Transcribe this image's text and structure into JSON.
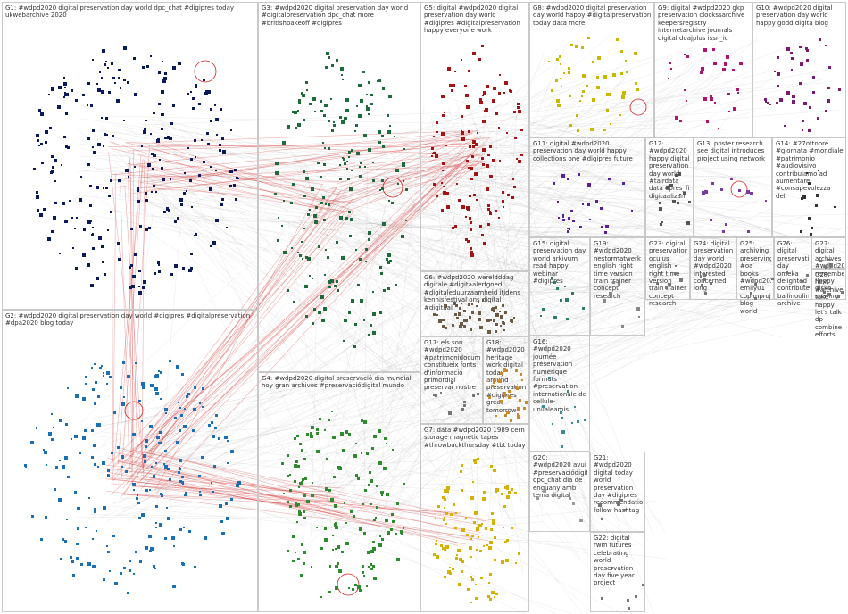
{
  "groups": [
    {
      "id": "G1",
      "label": "G1: #wdpd2020 digital preservation day world dpc_chat #digipres today ukwebarchive 2020",
      "color": "#0b1a5a",
      "count": 260
    },
    {
      "id": "G2",
      "label": "G2: #wdpd2020 digital preservation day world #digipres #digitalpreservation #dpa2020 blog today",
      "color": "#1a6fb5",
      "count": 230
    },
    {
      "id": "G3",
      "label": "G3: #wdpd2020 digital preservation day world #digitalpreservation dpc_chat more #britishbakeoff #digipres",
      "color": "#1d6a3a",
      "count": 200
    },
    {
      "id": "G4",
      "label": "G4: #wdpd2020 digital preservació dia mundial hoy gran archivos #preservaciódigital mundo",
      "color": "#2e8b2e",
      "count": 160
    },
    {
      "id": "G5",
      "label": "G5: digital #wdpd2020 digital preservation day world #digipres #digitalpreservation happy everyone work",
      "color": "#a31515",
      "count": 130
    },
    {
      "id": "G6",
      "label": "G6: #wdpd2020 wereldddag digitale #digitaalerfgoed #digitaleduurzaamheid itjdens kennisfestival ons digital #digitaal",
      "color": "#6b5a45",
      "count": 60
    },
    {
      "id": "G7",
      "label": "G7: data #wdpd2020 1989 cern storage magnetic tapes #throwbackthursday #tbt today",
      "color": "#d4b000",
      "count": 110
    },
    {
      "id": "G8",
      "label": "G8: #wdpd2020 digital preservation day world happy #digitalpreservation today data more",
      "color": "#c8b800",
      "count": 50
    },
    {
      "id": "G9",
      "label": "G9: digital #wdpd2020 gkp preservation clockssarchive keepersregistry internetarchive journals digital doajplus issn_ic",
      "color": "#b0156e",
      "count": 30
    },
    {
      "id": "G10",
      "label": "G10: #wdpd2020 digital preservation day world happy godd digita blog",
      "color": "#7a1b6e",
      "count": 40
    },
    {
      "id": "G11",
      "label": "G11: digital #wdpd2020 preservation day world happy collections one #digipres future",
      "color": "#5a1f9a",
      "count": 28
    },
    {
      "id": "G12",
      "label": "G12: #wdpd2020 happy digital preservation day world #tairdata data dpres_fi digitaalizan",
      "color": "#555555",
      "count": 14
    },
    {
      "id": "G13",
      "label": "G13: poster research see digital introduces project using network",
      "color": "#7a3aa0",
      "count": 14
    },
    {
      "id": "G14",
      "label": "G14: #27ottobre #giornata #mondiale #patrimonio #audiovisivo contribuiamo ad aumentare #consapevolezza dell",
      "color": "#333333",
      "count": 12
    },
    {
      "id": "G15",
      "label": "G15: digital preservation day world arkivum read happy webinar #digipres",
      "color": "#2a7d6a",
      "count": 12
    },
    {
      "id": "G16",
      "label": "G16: #wdpd2020 journée préservation numérique formats #preservation internationale de cellule-unilaleamis",
      "color": "#3d8b8b",
      "count": 12
    },
    {
      "id": "G17",
      "label": "G17: els son #wdpd2020 #patrimonidocumental constitueix fonts d'informació primordial preservar nostre",
      "color": "#777777",
      "count": 10
    },
    {
      "id": "G18",
      "label": "G18: #wdpd2020 heritage work digital today around preservation #digipres great tomorrow",
      "color": "#cc8a2a",
      "count": 30
    },
    {
      "id": "G19",
      "label": "G19: #wdpd2020 nestormatwerk english right time version train trainer concept research",
      "color": "#888888",
      "count": 8
    },
    {
      "id": "G20",
      "label": "G20: #wdpd2020 avui #preservaciódigital dpc_chat dia de enguany amb tema digital",
      "color": "#999999",
      "count": 6
    },
    {
      "id": "G21",
      "label": "G21: #wdpd2020 digital today world preservation day #digipres recommendation follow hashtag",
      "color": "#777777",
      "count": 6
    },
    {
      "id": "G22",
      "label": "G22: digital rwm futures celebrating world preservation day five year project",
      "color": "#777777",
      "count": 6
    },
    {
      "id": "G23",
      "label": "G23: digital preservation oculus english right time version train trainer concept research",
      "color": "#777777",
      "count": 6
    },
    {
      "id": "G24",
      "label": "G24: digital preservation day world #wdpd2020 interested concerned long",
      "color": "#777777",
      "count": 6
    },
    {
      "id": "G25",
      "label": "G25: archiving preserving #oa books #wdpd2020 emily01 copimproject blog world",
      "color": "#777777",
      "count": 5
    },
    {
      "id": "G26",
      "label": "G26: digital preservation day omeka delighted contribute ballinoolin archive",
      "color": "#777777",
      "count": 5
    },
    {
      "id": "G27",
      "label": "G27: digital archives #wdpd2020 remember floppy disks sharing",
      "color": "#777777",
      "count": 5
    },
    {
      "id": "G28",
      "label": "G28: next #archivematica take happy let's talk dp combine efforts",
      "color": "#777777",
      "count": 5
    }
  ]
}
